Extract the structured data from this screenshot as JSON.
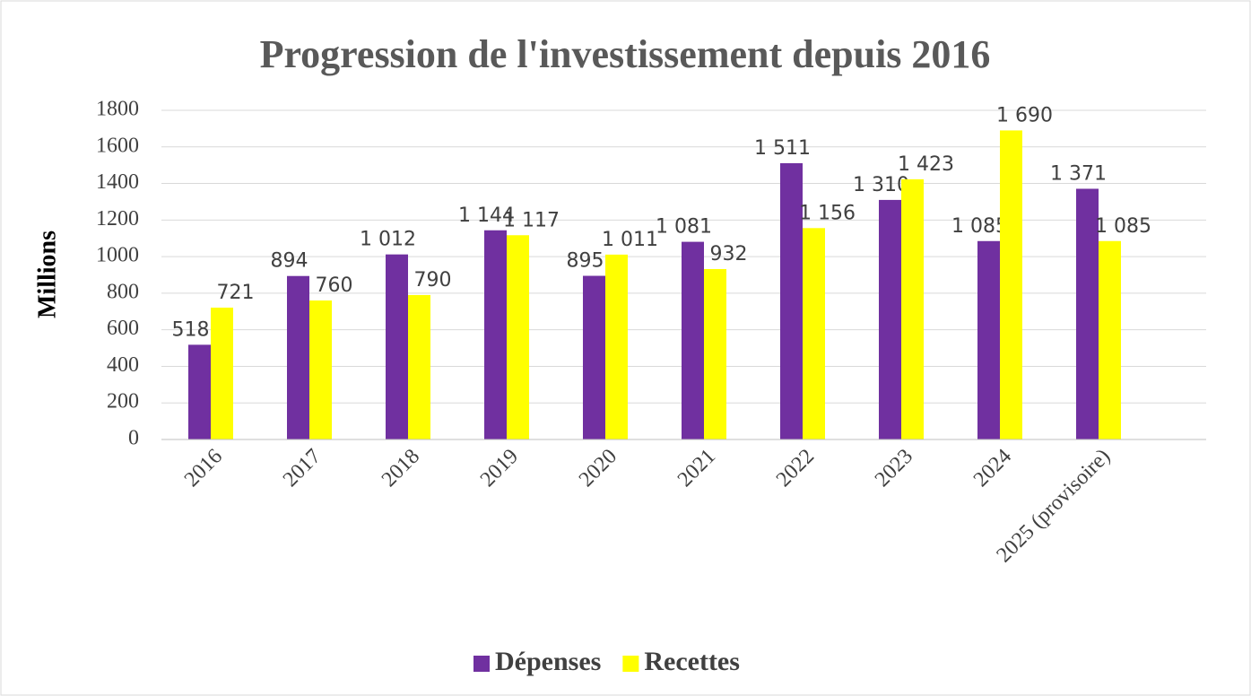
{
  "chart_data": {
    "type": "bar",
    "title": "Progression de l'investissement depuis 2016",
    "y_label": "Millions",
    "categories": [
      "2016",
      "2017",
      "2018",
      "2019",
      "2020",
      "2021",
      "2022",
      "2023",
      "2024",
      "2025 (provisoire)"
    ],
    "series": [
      {
        "name": "Dépenses",
        "color": "#7030a0",
        "values": [
          518,
          894,
          1012,
          1144,
          895,
          1081,
          1511,
          1310,
          1085,
          1371
        ],
        "value_labels": [
          "518",
          "894",
          "1 012",
          "1 144",
          "895",
          "1 081",
          "1 511",
          "1 310",
          "1 085",
          "1 371"
        ]
      },
      {
        "name": "Recettes",
        "color": "#ffff00",
        "values": [
          721,
          760,
          790,
          1117,
          1011,
          932,
          1156,
          1423,
          1690,
          1085
        ],
        "value_labels": [
          "721",
          "760",
          "790",
          "1 117",
          "1 011",
          "932",
          "1 156",
          "1 423",
          "1 690",
          "1 085"
        ]
      }
    ],
    "ylim": [
      0,
      1800
    ],
    "yticks": [
      0,
      200,
      400,
      600,
      800,
      1000,
      1200,
      1400,
      1600,
      1800
    ],
    "grid": true,
    "legend": "bottom"
  }
}
